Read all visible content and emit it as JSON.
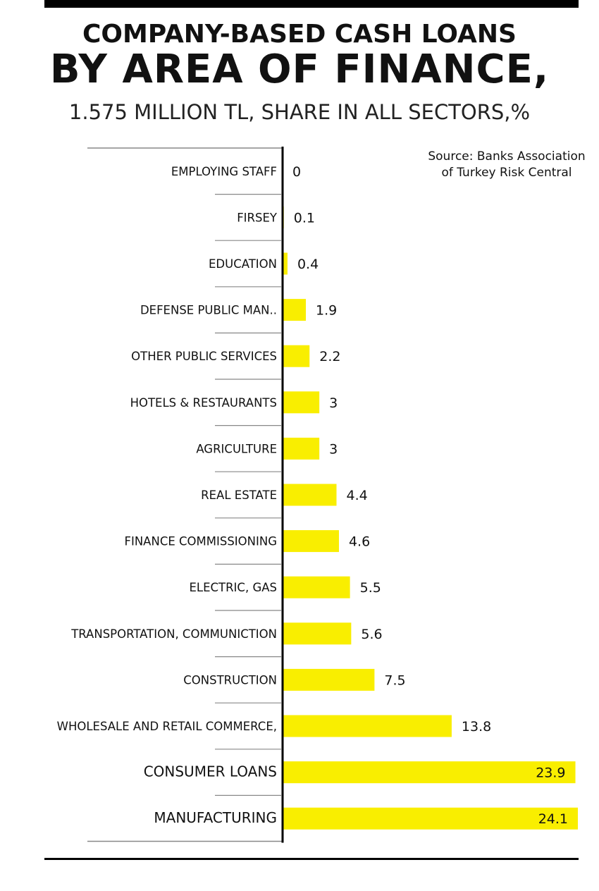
{
  "title_line1": "COMPANY-BASED CASH LOANS",
  "title_line2": "BY AREA OF FINANCE,",
  "subtitle": "1.575 MILLION TL, SHARE IN ALL SECTORS,%",
  "source": "Source: Banks Association of Turkey Risk Central",
  "colors": {
    "bar": "#f9ee00",
    "axis": "#000000",
    "separator": "#888888"
  },
  "chart_data": {
    "type": "bar",
    "orientation": "horizontal",
    "categories": [
      "EMPLOYING STAFF",
      "FIRSEY",
      "EDUCATION",
      "DEFENSE PUBLIC MAN..",
      "OTHER PUBLIC SERVICES",
      "HOTELS & RESTAURANTS",
      "AGRICULTURE",
      "REAL ESTATE",
      "FINANCE COMMISSIONING",
      "ELECTRIC, GAS",
      "TRANSPORTATION, COMMUNICTION",
      "CONSTRUCTION",
      "WHOLESALE AND RETAIL COMMERCE,",
      "CONSUMER LOANS",
      "MANUFACTURING"
    ],
    "values": [
      0,
      0.1,
      0.4,
      1.9,
      2.2,
      3,
      3,
      4.4,
      4.6,
      5.5,
      5.6,
      7.5,
      13.8,
      23.9,
      24.1
    ],
    "value_labels": [
      "0",
      "0.1",
      "0.4",
      "1.9",
      "2.2",
      "3",
      "3",
      "4.4",
      "4.6",
      "5.5",
      "5.6",
      "7.5",
      "13.8",
      "23.9",
      "24.1"
    ],
    "xlim": [
      0,
      24.1
    ],
    "grid": false,
    "legend": "none"
  }
}
